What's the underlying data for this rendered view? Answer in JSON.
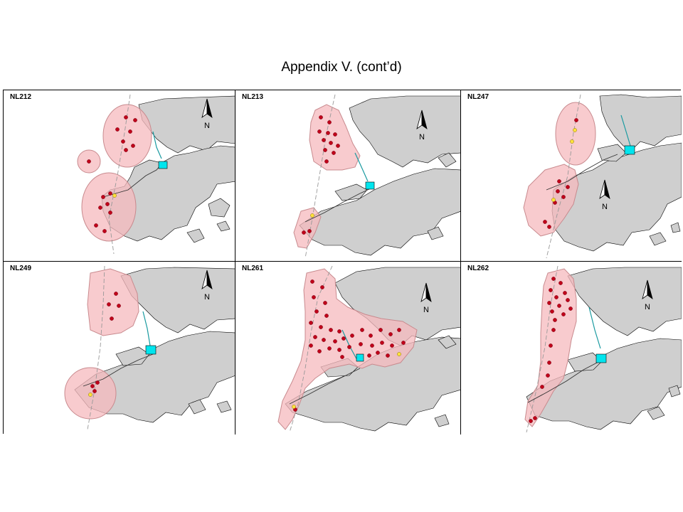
{
  "title": "Appendix V.  (cont’d)",
  "north_label": "N",
  "panels": [
    {
      "id": "NL212"
    },
    {
      "id": "NL213"
    },
    {
      "id": "NL247"
    },
    {
      "id": "NL249"
    },
    {
      "id": "NL261"
    },
    {
      "id": "NL262"
    }
  ],
  "colors": {
    "land": "#cfcfcf",
    "buffer": "#f6b9bd",
    "fix_red": "#c0001a",
    "fix_yellow": "#ffe23b",
    "site": "#00e5ee"
  },
  "legend_symbols": [
    "north-arrow-icon",
    "red-fix-dot",
    "yellow-fix-dot",
    "cyan-site-square",
    "dashed-boundary-line"
  ]
}
